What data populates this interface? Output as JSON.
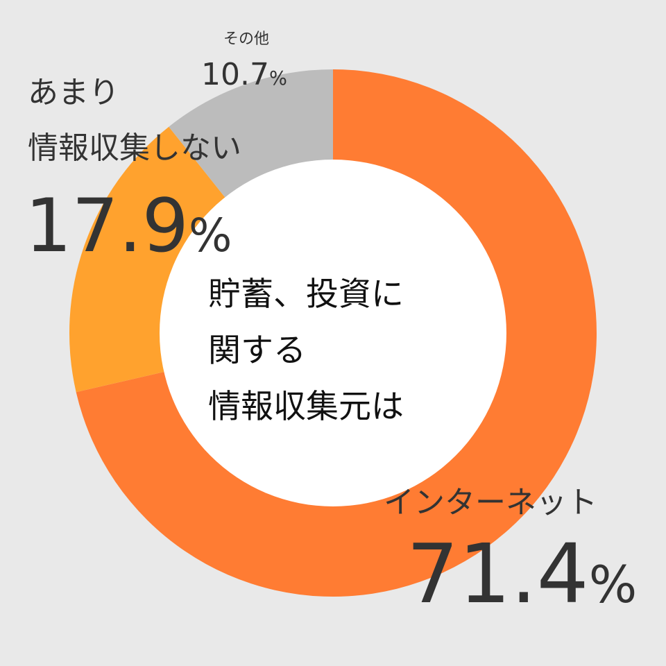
{
  "chart_data": {
    "type": "pie",
    "center_title": [
      "貯蓄、投資に",
      "関する",
      "情報収集元は"
    ],
    "slices": [
      {
        "label": "インターネット",
        "value": 71.4,
        "value_text": "71.4",
        "color": "#ff7c33"
      },
      {
        "label": "あまり\n情報収集しない",
        "label_lines": [
          "あまり",
          "情報収集しない"
        ],
        "value": 17.9,
        "value_text": "17.9",
        "color": "#ffa22e"
      },
      {
        "label": "その他",
        "value": 10.7,
        "value_text": "10.7",
        "color": "#bcbcbc"
      }
    ],
    "unit": "%",
    "legend": "none"
  }
}
